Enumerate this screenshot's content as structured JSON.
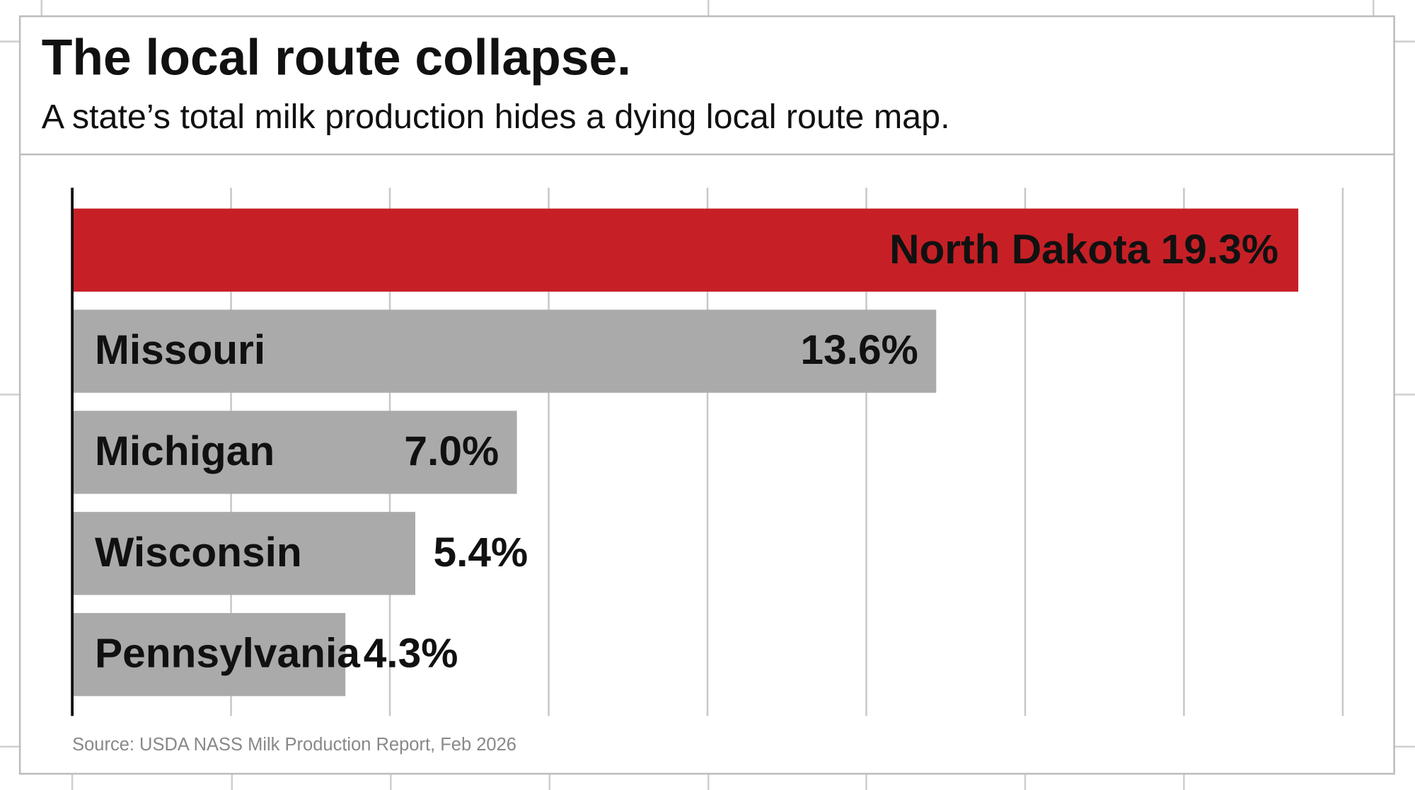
{
  "chart_data": {
    "type": "hbar",
    "title": "The local route collapse.",
    "subtitle": "A state’s total milk production hides a dying local route map.",
    "categories": [
      "North Dakota",
      "Missouri",
      "Michigan",
      "Wisconsin",
      "Pennsylvania"
    ],
    "values": [
      19.3,
      13.6,
      7.0,
      5.4,
      4.3
    ],
    "value_labels": [
      "19.3%",
      "13.6%",
      "7.0%",
      "5.4%",
      "4.3%"
    ],
    "colors": [
      "#c62026",
      "#aaaaaa",
      "#aaaaaa",
      "#aaaaaa",
      "#aaaaaa"
    ],
    "highlight": "North Dakota",
    "xlim": [
      0,
      20
    ],
    "xticks": [
      0,
      2.5,
      5,
      7.5,
      10,
      12.5,
      15,
      17.5,
      20
    ],
    "grid": true,
    "source": "Source: USDA NASS Milk Production Report, Feb 2026"
  }
}
